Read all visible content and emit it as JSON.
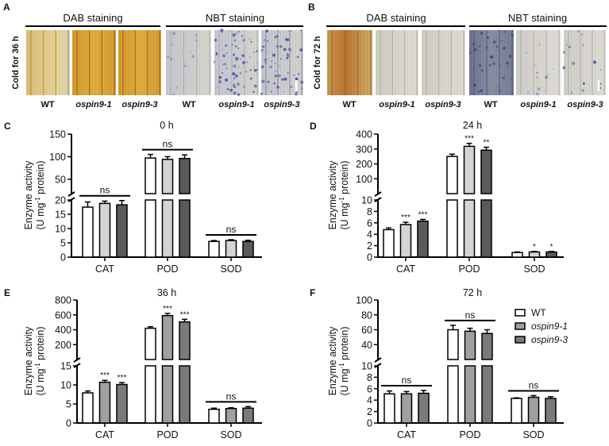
{
  "panel_a": {
    "letter": "A",
    "dab_header": "DAB staining",
    "nbt_header": "NBT staining",
    "condition": "Cold for 36 h",
    "lanes": [
      "WT",
      "ospin9-1",
      "ospin9-3",
      "WT",
      "ospin9-1",
      "ospin9-3"
    ]
  },
  "panel_b": {
    "letter": "B",
    "dab_header": "DAB staining",
    "nbt_header": "NBT staining",
    "condition": "Cold for 72 h",
    "lanes": [
      "WT",
      "ospin9-1",
      "ospin9-3",
      "WT",
      "ospin9-1",
      "ospin9-3"
    ]
  },
  "colors": {
    "wt": "#ffffff",
    "light_mutant_1": "#d4d4d4",
    "light_mutant_3": "#5a5a5a",
    "mid_mutant_1": "#a0a0a0",
    "mid_mutant_3": "#7a7a7a"
  },
  "legend": [
    {
      "label": "WT",
      "color": "#ffffff"
    },
    {
      "label": "ospin9-1",
      "color": "#a0a0a0"
    },
    {
      "label": "ospin9-3",
      "color": "#7a7a7a"
    }
  ],
  "chart_data": [
    {
      "letter": "C",
      "type": "bar",
      "title": "0 h",
      "ylabel": [
        "Enzyme activity",
        "(U mg",
        "-1",
        " protein)"
      ],
      "categories": [
        "CAT",
        "POD",
        "SOD"
      ],
      "series_names": [
        "WT",
        "ospin9-1",
        "ospin9-3"
      ],
      "series_colors": [
        "#ffffff",
        "#d4d4d4",
        "#5a5a5a"
      ],
      "lower_ylim": [
        0,
        20
      ],
      "lower_ticks": [
        "0",
        "5",
        "10",
        "15",
        "20"
      ],
      "upper_ylim": [
        18,
        150
      ],
      "upper_ticks": [
        "50",
        "100",
        "150"
      ],
      "values": [
        [
          17.5,
          18.8,
          18.3
        ],
        [
          97,
          94,
          96
        ],
        [
          5.5,
          5.8,
          5.5
        ]
      ],
      "errors": [
        [
          1.8,
          0.8,
          1.5
        ],
        [
          8,
          6,
          8
        ],
        [
          0.3,
          0.3,
          0.4
        ]
      ],
      "significance": [
        [
          "",
          "",
          ""
        ],
        [
          "",
          "",
          ""
        ],
        [
          "",
          "",
          ""
        ]
      ],
      "group_ns": [
        "ns",
        "ns",
        "ns"
      ]
    },
    {
      "letter": "D",
      "type": "bar",
      "title": "24 h",
      "ylabel": [
        "Enzyme activity",
        "(U mg",
        "-1",
        " protein)"
      ],
      "categories": [
        "CAT",
        "POD",
        "SOD"
      ],
      "series_names": [
        "WT",
        "ospin9-1",
        "ospin9-3"
      ],
      "series_colors": [
        "#ffffff",
        "#d4d4d4",
        "#5a5a5a"
      ],
      "lower_ylim": [
        0,
        10
      ],
      "lower_ticks": [
        "0",
        "2",
        "4",
        "6",
        "8",
        "10"
      ],
      "upper_ylim": [
        0,
        400
      ],
      "upper_ticks": [
        "100",
        "200",
        "300",
        "400"
      ],
      "values": [
        [
          4.8,
          5.7,
          6.3
        ],
        [
          250,
          318,
          292
        ],
        [
          0.8,
          0.9,
          0.9
        ]
      ],
      "errors": [
        [
          0.3,
          0.4,
          0.3
        ],
        [
          15,
          20,
          20
        ],
        [
          0.1,
          0.1,
          0.1
        ]
      ],
      "significance": [
        [
          "",
          "***",
          "***"
        ],
        [
          "",
          "***",
          "**"
        ],
        [
          "",
          "*",
          "*"
        ]
      ],
      "group_ns": [
        "",
        "",
        ""
      ]
    },
    {
      "letter": "E",
      "type": "bar",
      "title": "36 h",
      "ylabel": [
        "Enzyme activity",
        "(U mg",
        "-1",
        " protein)"
      ],
      "categories": [
        "CAT",
        "POD",
        "SOD"
      ],
      "series_names": [
        "WT",
        "ospin9-1",
        "ospin9-3"
      ],
      "series_colors": [
        "#ffffff",
        "#a0a0a0",
        "#7a7a7a"
      ],
      "lower_ylim": [
        0,
        15
      ],
      "lower_ticks": [
        "0",
        "5",
        "10",
        "15"
      ],
      "upper_ylim": [
        0,
        800
      ],
      "upper_ticks": [
        "200",
        "400",
        "600",
        "800"
      ],
      "values": [
        [
          7.9,
          10.7,
          10.1
        ],
        [
          420,
          590,
          505
        ],
        [
          3.6,
          3.8,
          3.9
        ]
      ],
      "errors": [
        [
          0.5,
          0.5,
          0.5
        ],
        [
          20,
          30,
          35
        ],
        [
          0.3,
          0.2,
          0.4
        ]
      ],
      "significance": [
        [
          "",
          "***",
          "***"
        ],
        [
          "",
          "***",
          "***"
        ],
        [
          "",
          "",
          ""
        ]
      ],
      "group_ns": [
        "",
        "",
        "ns"
      ]
    },
    {
      "letter": "F",
      "type": "bar",
      "title": "72 h",
      "ylabel": [
        "Enzyme activity",
        "(U mg",
        "-1",
        " protein)"
      ],
      "categories": [
        "CAT",
        "POD",
        "SOD"
      ],
      "series_names": [
        "WT",
        "ospin9-1",
        "ospin9-3"
      ],
      "series_colors": [
        "#ffffff",
        "#a0a0a0",
        "#7a7a7a"
      ],
      "lower_ylim": [
        0,
        10
      ],
      "lower_ticks": [
        "0",
        "2",
        "4",
        "6",
        "8",
        "10"
      ],
      "upper_ylim": [
        20,
        100
      ],
      "upper_ticks": [
        "40",
        "60",
        "80",
        "100"
      ],
      "values": [
        [
          5.1,
          5.1,
          5.2
        ],
        [
          60,
          58,
          55
        ],
        [
          4.3,
          4.5,
          4.3
        ]
      ],
      "errors": [
        [
          0.5,
          0.4,
          0.5
        ],
        [
          6,
          4,
          5
        ],
        [
          0.1,
          0.3,
          0.3
        ]
      ],
      "significance": [
        [
          "",
          "",
          ""
        ],
        [
          "",
          "",
          ""
        ],
        [
          "",
          "",
          ""
        ]
      ],
      "group_ns": [
        "ns",
        "ns",
        "ns"
      ]
    }
  ]
}
